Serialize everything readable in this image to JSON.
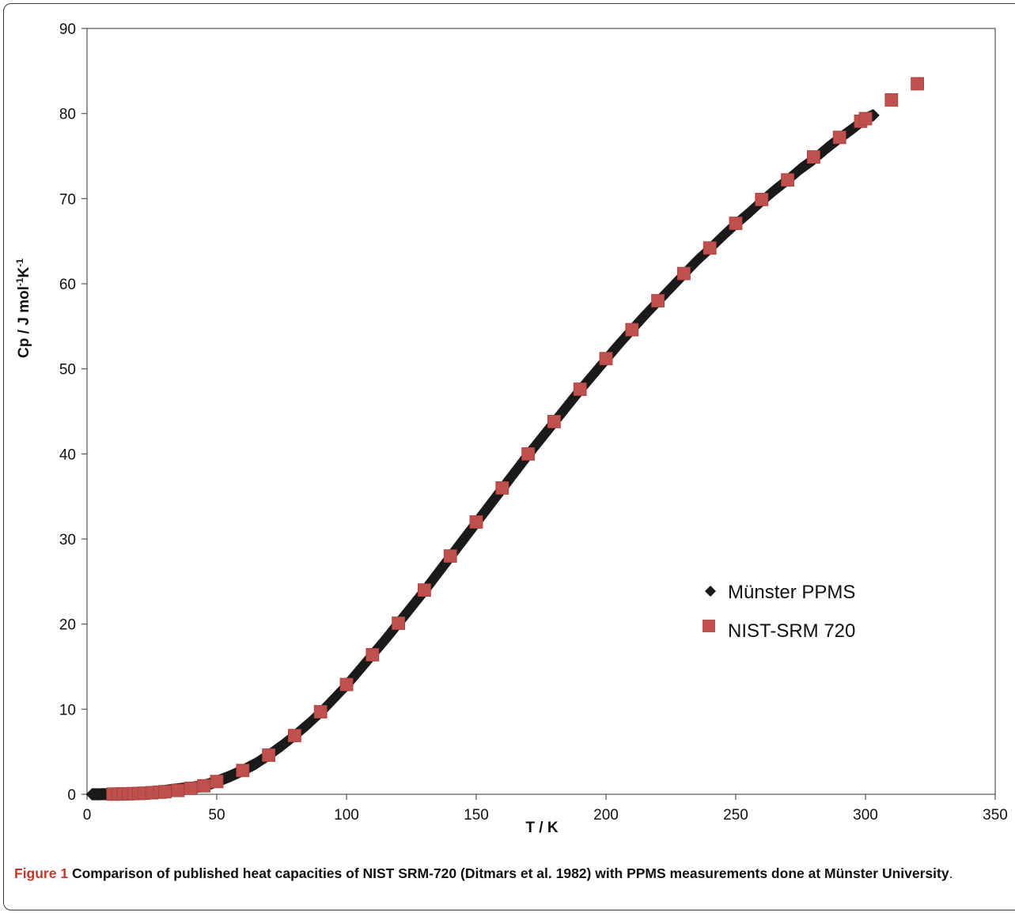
{
  "caption": {
    "label": "Figure 1",
    "text": "Comparison of published heat capacities of NIST SRM-720 (Ditmars et al. 1982) with PPMS measurements done at Münster University",
    "end": "."
  },
  "chart_data": {
    "type": "scatter",
    "xlabel": "T / K",
    "ylabel": "Cp / J mol-1K-1",
    "ylabel_parts": {
      "base": "Cp / J mol",
      "exp1": "-1",
      "mid": "K",
      "exp2": "-1"
    },
    "xlim": [
      0,
      350
    ],
    "ylim": [
      0,
      90
    ],
    "xticks": [
      0,
      50,
      100,
      150,
      200,
      250,
      300,
      350
    ],
    "yticks": [
      0,
      10,
      20,
      30,
      40,
      50,
      60,
      70,
      80,
      90
    ],
    "grid": false,
    "legend_position": "lower-right",
    "series": [
      {
        "name": "Münster PPMS",
        "marker": "diamond",
        "color": "#1a1a1a",
        "x": [
          2,
          4,
          6,
          8,
          10,
          12,
          15,
          20,
          25,
          30,
          35,
          40,
          45,
          50,
          55,
          60,
          65,
          70,
          75,
          80,
          85,
          90,
          95,
          100,
          105,
          110,
          115,
          120,
          125,
          130,
          135,
          140,
          145,
          150,
          155,
          160,
          165,
          170,
          175,
          180,
          185,
          190,
          195,
          200,
          205,
          210,
          215,
          220,
          225,
          230,
          235,
          240,
          245,
          250,
          255,
          260,
          265,
          270,
          275,
          280,
          285,
          290,
          295,
          300,
          303
        ],
        "y": [
          0.0,
          0.0,
          0.01,
          0.01,
          0.02,
          0.04,
          0.07,
          0.14,
          0.25,
          0.4,
          0.6,
          0.75,
          1.0,
          1.5,
          2.1,
          2.8,
          3.6,
          4.6,
          5.7,
          6.9,
          8.2,
          9.6,
          11.2,
          12.8,
          14.6,
          16.4,
          18.2,
          20.1,
          22.0,
          23.9,
          25.9,
          27.9,
          29.9,
          31.9,
          33.9,
          35.9,
          37.9,
          39.9,
          41.8,
          43.7,
          45.6,
          47.5,
          49.3,
          51.1,
          52.9,
          54.6,
          56.3,
          57.9,
          59.5,
          61.1,
          62.7,
          64.1,
          65.6,
          67.0,
          68.3,
          69.7,
          71.0,
          72.2,
          73.5,
          74.6,
          75.9,
          77.1,
          78.2,
          79.4,
          79.8
        ]
      },
      {
        "name": "NIST-SRM 720",
        "marker": "square",
        "color": "#c0504d",
        "x": [
          10,
          12,
          14,
          16,
          18,
          20,
          22,
          25,
          28,
          30,
          35,
          40,
          45,
          50,
          60,
          70,
          80,
          90,
          100,
          110,
          120,
          130,
          140,
          150,
          160,
          170,
          180,
          190,
          200,
          210,
          220,
          230,
          240,
          250,
          260,
          270,
          280,
          290,
          298.15,
          300,
          310,
          320
        ],
        "y": [
          0.02,
          0.03,
          0.05,
          0.06,
          0.08,
          0.1,
          0.13,
          0.18,
          0.25,
          0.3,
          0.45,
          0.7,
          1.0,
          1.5,
          2.8,
          4.6,
          6.9,
          9.7,
          12.9,
          16.4,
          20.1,
          24.0,
          28.0,
          32.0,
          36.0,
          40.0,
          43.8,
          47.6,
          51.2,
          54.6,
          58.0,
          61.2,
          64.2,
          67.1,
          69.9,
          72.2,
          74.9,
          77.2,
          79.1,
          79.4,
          81.6,
          83.5
        ]
      }
    ]
  }
}
